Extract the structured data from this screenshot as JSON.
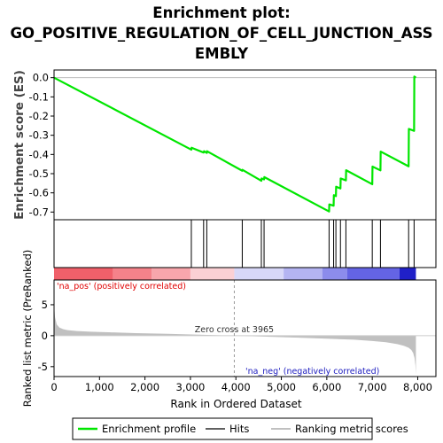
{
  "title_lines": [
    "Enrichment plot:",
    "GO_POSITIVE_REGULATION_OF_CELL_JUNCTION_ASS",
    "EMBLY"
  ],
  "chart_data": {
    "type": "line",
    "es_panel": {
      "ylabel": "Enrichment score (ES)",
      "ylim": [
        -0.74,
        0.04
      ],
      "yticks": [
        0.0,
        -0.1,
        -0.2,
        -0.3,
        -0.4,
        -0.5,
        -0.6,
        -0.7
      ],
      "ytick_labels": [
        "0.0",
        "-0.1",
        "-0.2",
        "-0.3",
        "-0.4",
        "-0.5",
        "-0.6",
        "-0.7"
      ],
      "series": [
        {
          "name": "Enrichment profile",
          "color": "#00e600",
          "x": [
            0,
            3020,
            3025,
            3290,
            3300,
            3360,
            3365,
            4140,
            4145,
            4560,
            4565,
            4620,
            4625,
            6050,
            6055,
            6150,
            6155,
            6200,
            6205,
            6300,
            6305,
            6420,
            6425,
            7000,
            7005,
            7180,
            7185,
            7800,
            7805,
            7920,
            7925,
            7960
          ],
          "y": [
            0.0,
            -0.375,
            -0.365,
            -0.39,
            -0.383,
            -0.392,
            -0.383,
            -0.485,
            -0.48,
            -0.537,
            -0.525,
            -0.53,
            -0.518,
            -0.697,
            -0.66,
            -0.667,
            -0.612,
            -0.617,
            -0.568,
            -0.577,
            -0.525,
            -0.535,
            -0.482,
            -0.555,
            -0.463,
            -0.483,
            -0.385,
            -0.462,
            -0.267,
            -0.277,
            0.006,
            0.0
          ]
        }
      ],
      "zero_line_color": "#bbbbbb"
    },
    "hits": {
      "name": "Hits",
      "positions": [
        3020,
        3290,
        3360,
        4140,
        4560,
        4620,
        6050,
        6150,
        6200,
        6300,
        6420,
        7000,
        7180,
        7800,
        7920
      ]
    },
    "rank_bar": {
      "segments": [
        {
          "from": 0,
          "to": 1300,
          "color": "#f0606a"
        },
        {
          "from": 1300,
          "to": 2150,
          "color": "#f5828a"
        },
        {
          "from": 2150,
          "to": 3000,
          "color": "#f8a6ac"
        },
        {
          "from": 3000,
          "to": 3965,
          "color": "#fbd0d4"
        },
        {
          "from": 3965,
          "to": 5050,
          "color": "#d8d8f8"
        },
        {
          "from": 5050,
          "to": 5900,
          "color": "#b4b4f2"
        },
        {
          "from": 5900,
          "to": 6450,
          "color": "#8c8cec"
        },
        {
          "from": 6450,
          "to": 7600,
          "color": "#6464e4"
        },
        {
          "from": 7600,
          "to": 7960,
          "color": "#2020c8"
        }
      ]
    },
    "metric_panel": {
      "ylabel": "Ranked list metric (PreRanked)",
      "xlabel": "Rank in Ordered Dataset",
      "ylim": [
        -6.6,
        9.0
      ],
      "yticks": [
        5,
        0,
        -5
      ],
      "ytick_labels": [
        "5",
        "0",
        "-5"
      ],
      "xlim": [
        0,
        8400
      ],
      "xticks": [
        0,
        1000,
        2000,
        3000,
        4000,
        5000,
        6000,
        7000,
        8000
      ],
      "xtick_labels": [
        "0",
        "1,000",
        "2,000",
        "3,000",
        "4,000",
        "5,000",
        "6,000",
        "7,000",
        "8,000"
      ],
      "metric_x": [
        0,
        20,
        60,
        120,
        200,
        300,
        500,
        800,
        1200,
        1800,
        2500,
        3200,
        3965,
        4600,
        5300,
        6000,
        6600,
        7000,
        7300,
        7550,
        7700,
        7800,
        7860,
        7900,
        7930,
        7950,
        7960
      ],
      "metric_y": [
        5.1,
        3.0,
        1.8,
        1.3,
        1.05,
        0.9,
        0.75,
        0.65,
        0.55,
        0.42,
        0.3,
        0.17,
        0.0,
        -0.15,
        -0.3,
        -0.48,
        -0.65,
        -0.85,
        -1.05,
        -1.35,
        -1.65,
        -1.95,
        -2.3,
        -2.8,
        -3.6,
        -4.8,
        -6.3
      ],
      "fill_color": "#c0c0c0",
      "zero_cross_label": "Zero cross at 3965",
      "zero_cross_x": 3965,
      "pos_label": "'na_pos' (positively correlated)",
      "neg_label": "'na_neg' (negatively correlated)"
    },
    "legend": {
      "placement": "bottom",
      "items": [
        {
          "label": "Enrichment profile",
          "color": "#00e600"
        },
        {
          "label": "Hits",
          "color": "#606060"
        },
        {
          "label": "Ranking metric scores",
          "color": "#c0c0c0"
        }
      ]
    }
  }
}
